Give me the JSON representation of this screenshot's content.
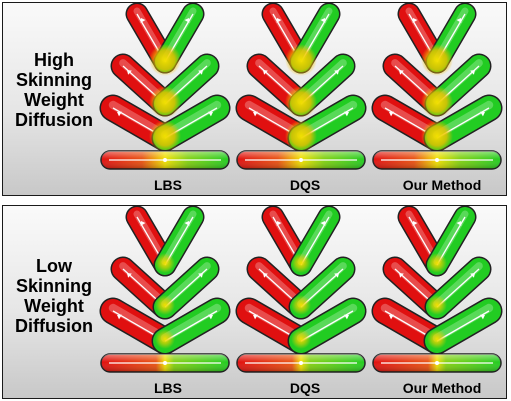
{
  "rows": [
    {
      "label_lines": [
        "High",
        "Skinning",
        "Weight",
        "Diffusion"
      ]
    },
    {
      "label_lines": [
        "Low",
        "Skinning",
        "Weight",
        "Diffusion"
      ]
    }
  ],
  "methods": [
    "LBS",
    "DQS",
    "Our Method"
  ],
  "colors": {
    "red": "#e01010",
    "yellow": "#f0e000",
    "green": "#22cc22",
    "frame": "#1a1a1a"
  }
}
